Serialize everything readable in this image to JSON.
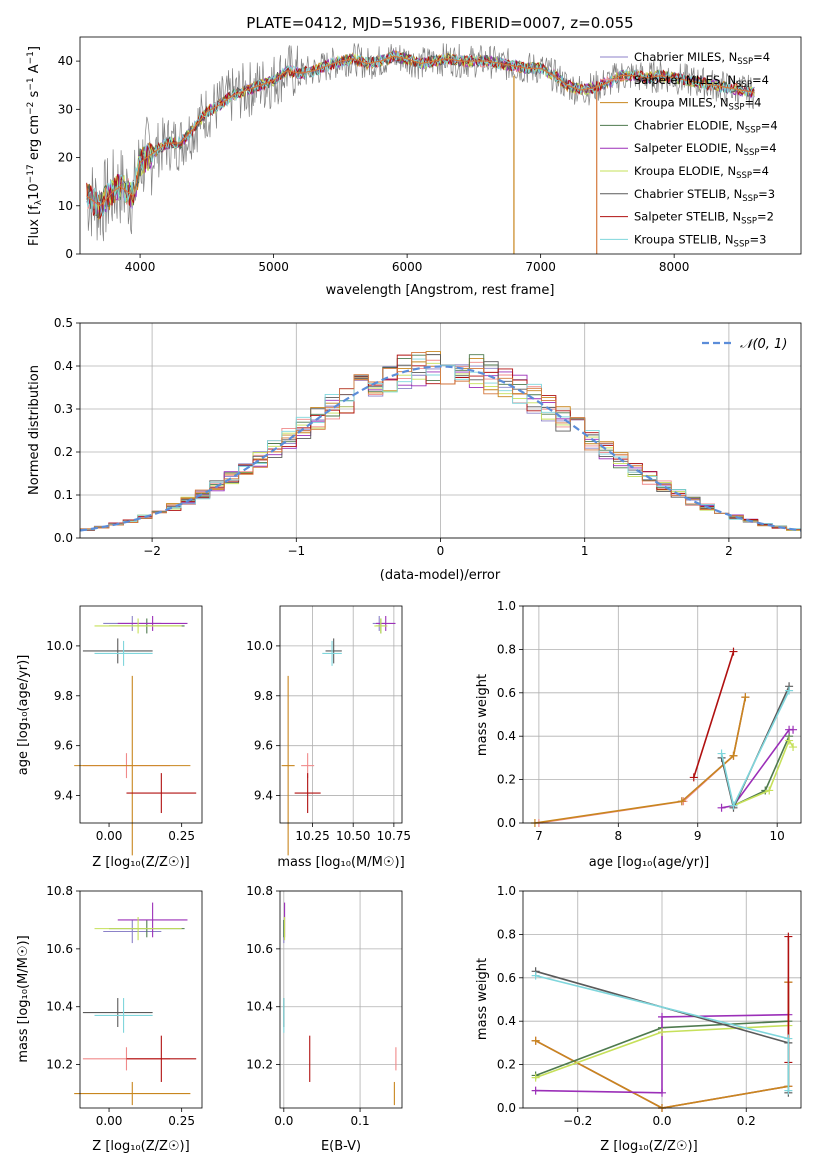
{
  "figure": {
    "title": "PLATE=0412, MJD=51936, FIBERID=0007, z=0.055"
  },
  "colors": {
    "Chabrier MILES": "#8c82c8",
    "Salpeter MILES": "#f08a8a",
    "Kroupa MILES": "#c8861e",
    "Chabrier ELODIE": "#4e7a4e",
    "Salpeter ELODIE": "#9b2fb8",
    "Kroupa ELODIE": "#c6e05a",
    "Chabrier STELIB": "#5a5a5a",
    "Salpeter STELIB": "#b01010",
    "Kroupa STELIB": "#7fd6dc",
    "combined": "#d4783c",
    "obs": "#808080",
    "normal": "#5b8dd9"
  },
  "chart_data": [
    {
      "id": "spectrum",
      "type": "line",
      "title": "PLATE=0412, MJD=51936, FIBERID=0007, z=0.055",
      "xlabel": "wavelength [Angstrom, rest frame]",
      "ylabel_parts": {
        "a": "Flux [f",
        "b": "λ",
        "c": "10",
        "d": "−17",
        "e": " erg cm",
        "f": "−2",
        "g": " s",
        "h": "−1",
        "i": " A",
        "j": "−1",
        "k": "]"
      },
      "xlim": [
        3550,
        8950
      ],
      "ylim": [
        0,
        45
      ],
      "xticks": [
        4000,
        5000,
        6000,
        7000,
        8000
      ],
      "yticks": [
        0,
        10,
        20,
        30,
        40
      ],
      "x": [
        3600,
        3650,
        3700,
        3750,
        3800,
        3850,
        3900,
        3950,
        4000,
        4100,
        4200,
        4300,
        4400,
        4500,
        4600,
        4700,
        4800,
        4900,
        5000,
        5100,
        5200,
        5300,
        5400,
        5500,
        5600,
        5700,
        5800,
        5900,
        6000,
        6100,
        6200,
        6300,
        6400,
        6500,
        6600,
        6700,
        6800,
        6900,
        7000,
        7100,
        7200,
        7300,
        7400,
        7500,
        7600,
        7700,
        7800,
        7900,
        8000,
        8100,
        8200,
        8300,
        8400,
        8500,
        8600
      ],
      "model": [
        12,
        11,
        10,
        11.5,
        13,
        14,
        13,
        12,
        19,
        21,
        23,
        23,
        26,
        29.5,
        31,
        33,
        34,
        35,
        36,
        38,
        37.5,
        38,
        39,
        40,
        40.5,
        39.5,
        40,
        41,
        40.5,
        39.5,
        40,
        40.5,
        40,
        40,
        40,
        39.5,
        39,
        38.5,
        38.5,
        37,
        35,
        34,
        34.5,
        35.5,
        37,
        37,
        36.5,
        37,
        36.5,
        36,
        35.5,
        35,
        34.5,
        34,
        33.5
      ],
      "legend": [
        {
          "base": "Chabrier MILES, N",
          "sub": "SSP",
          "tail": "=4"
        },
        {
          "base": "Salpeter MILES, N",
          "sub": "SSP",
          "tail": "=4"
        },
        {
          "base": "Kroupa MILES, N",
          "sub": "SSP",
          "tail": "=4"
        },
        {
          "base": "Chabrier ELODIE, N",
          "sub": "SSP",
          "tail": "=4"
        },
        {
          "base": "Salpeter ELODIE, N",
          "sub": "SSP",
          "tail": "=4"
        },
        {
          "base": "Kroupa ELODIE, N",
          "sub": "SSP",
          "tail": "=4"
        },
        {
          "base": "Chabrier STELIB, N",
          "sub": "SSP",
          "tail": "=3"
        },
        {
          "base": "Salpeter STELIB, N",
          "sub": "SSP",
          "tail": "=2"
        },
        {
          "base": "Kroupa STELIB, N",
          "sub": "SSP",
          "tail": "=3"
        }
      ],
      "legend_placement": "upper right"
    },
    {
      "id": "residuals",
      "type": "histogram",
      "xlabel": "(data-model)/error",
      "ylabel": "Normed distribution",
      "xlim": [
        -2.5,
        2.5
      ],
      "ylim": [
        0,
        0.5
      ],
      "xticks": [
        -2,
        -1,
        0,
        1,
        2
      ],
      "yticks": [
        0.0,
        0.1,
        0.2,
        0.3,
        0.4,
        0.5
      ],
      "grid": true,
      "bin_width": 0.1,
      "legend": {
        "label": "𝒩(0, 1)"
      },
      "legend_placement": "upper right"
    },
    {
      "id": "age-Z",
      "type": "scatter",
      "xlabel": "Z [log₁₀(Z/Z☉)]",
      "ylabel": "age  [log₁₀(age/yr)]",
      "xlim": [
        -0.1,
        0.32
      ],
      "ylim": [
        9.29,
        10.16
      ],
      "xticks": [
        0.0,
        0.25
      ],
      "yticks": [
        9.4,
        9.6,
        9.8,
        10.0
      ]
    },
    {
      "id": "age-mass",
      "type": "scatter",
      "xlabel": "mass [log₁₀(M/M☉)]",
      "ylabel": "",
      "xlim": [
        10.05,
        10.8
      ],
      "ylim": [
        9.29,
        10.16
      ],
      "xticks": [
        10.25,
        10.5,
        10.75
      ],
      "yticks": [
        9.4,
        9.6,
        9.8,
        10.0
      ]
    },
    {
      "id": "weight-age",
      "type": "line",
      "xlabel": "age  [log₁₀(age/yr)]",
      "ylabel": "mass weight",
      "xlim": [
        6.8,
        10.3
      ],
      "ylim": [
        0,
        1
      ],
      "xticks": [
        7,
        8,
        9,
        10
      ],
      "yticks": [
        0.0,
        0.2,
        0.4,
        0.6,
        0.8,
        1.0
      ],
      "grid": true
    },
    {
      "id": "mass-Z",
      "type": "scatter",
      "xlabel": "Z [log₁₀(Z/Z☉)]",
      "ylabel": "mass [log₁₀(M/M☉)]",
      "xlim": [
        -0.1,
        0.32
      ],
      "ylim": [
        10.05,
        10.8
      ],
      "xticks": [
        0.0,
        0.25
      ],
      "yticks": [
        10.2,
        10.4,
        10.6,
        10.8
      ]
    },
    {
      "id": "mass-EBV",
      "type": "scatter",
      "xlabel": "E(B-V)",
      "ylabel": "",
      "xlim": [
        -0.005,
        0.155
      ],
      "ylim": [
        10.05,
        10.8
      ],
      "xticks": [
        0.0,
        0.1
      ],
      "yticks": [
        10.2,
        10.4,
        10.6,
        10.8
      ],
      "grid": true
    },
    {
      "id": "weight-Z",
      "type": "line",
      "xlabel": "Z [log₁₀(Z/Z☉)]",
      "ylabel": "mass weight",
      "xlim": [
        -0.33,
        0.33
      ],
      "ylim": [
        0,
        1
      ],
      "xticks": [
        -0.2,
        0.0,
        0.2
      ],
      "yticks": [
        0.0,
        0.2,
        0.4,
        0.6,
        0.8,
        1.0
      ],
      "grid": true
    }
  ],
  "models": [
    {
      "key": "Chabrier MILES",
      "Z": 0.08,
      "Zerr": 0.1,
      "age": 10.09,
      "ageErr": 0.03,
      "mass": 10.66,
      "massErr": 0.04,
      "ebv": 0.0,
      "wa": [
        [
          8.8,
          0.1
        ],
        [
          9.45,
          0.31
        ],
        [
          9.6,
          0.58
        ]
      ],
      "wz": [
        [
          -0.3,
          0.31
        ],
        [
          0.0,
          0.0
        ],
        [
          0.3,
          0.1
        ],
        [
          0.3,
          0.58
        ]
      ]
    },
    {
      "key": "Salpeter MILES",
      "Z": 0.06,
      "Zerr": 0.15,
      "age": 9.52,
      "ageErr": 0.05,
      "mass": 10.22,
      "massErr": 0.04,
      "ebv": 0.147,
      "wa": [
        [
          7.0,
          0.0
        ],
        [
          8.82,
          0.1
        ],
        [
          9.45,
          0.31
        ],
        [
          9.6,
          0.58
        ]
      ],
      "wz": [
        [
          -0.3,
          0.31
        ],
        [
          0.0,
          0.0
        ],
        [
          0.3,
          0.1
        ],
        [
          0.3,
          0.58
        ]
      ]
    },
    {
      "key": "Kroupa MILES",
      "Z": 0.08,
      "Zerr": 0.2,
      "age": 9.52,
      "ageErr": 0.36,
      "mass": 10.1,
      "massErr": 0.04,
      "ebv": 0.145,
      "wa": [
        [
          6.95,
          0.0
        ],
        [
          8.8,
          0.1
        ],
        [
          9.45,
          0.31
        ],
        [
          9.6,
          0.58
        ]
      ],
      "wz": [
        [
          -0.3,
          0.31
        ],
        [
          0.0,
          0.0
        ],
        [
          0.3,
          0.1
        ],
        [
          0.3,
          0.58
        ]
      ]
    },
    {
      "key": "Chabrier ELODIE",
      "Z": 0.13,
      "Zerr": 0.13,
      "age": 10.08,
      "ageErr": 0.03,
      "mass": 10.67,
      "massErr": 0.03,
      "ebv": 0.0,
      "wa": [
        [
          9.45,
          0.08
        ],
        [
          9.85,
          0.15
        ],
        [
          10.15,
          0.4
        ]
      ],
      "wz": [
        [
          -0.3,
          0.15
        ],
        [
          0.0,
          0.37
        ],
        [
          0.3,
          0.4
        ]
      ]
    },
    {
      "key": "Salpeter ELODIE",
      "Z": 0.15,
      "Zerr": 0.12,
      "age": 10.09,
      "ageErr": 0.03,
      "mass": 10.7,
      "massErr": 0.06,
      "ebv": 0.001,
      "wa": [
        [
          9.3,
          0.07
        ],
        [
          9.45,
          0.08
        ],
        [
          10.15,
          0.43
        ],
        [
          10.2,
          0.43
        ]
      ],
      "wz": [
        [
          -0.3,
          0.08
        ],
        [
          0.0,
          0.07
        ],
        [
          0.0,
          0.42
        ],
        [
          0.3,
          0.43
        ]
      ]
    },
    {
      "key": "Kroupa ELODIE",
      "Z": 0.1,
      "Zerr": 0.15,
      "age": 10.08,
      "ageErr": 0.03,
      "mass": 10.67,
      "massErr": 0.04,
      "ebv": 0.001,
      "wa": [
        [
          9.45,
          0.08
        ],
        [
          9.9,
          0.15
        ],
        [
          10.15,
          0.38
        ],
        [
          10.2,
          0.35
        ]
      ],
      "wz": [
        [
          -0.3,
          0.14
        ],
        [
          0.0,
          0.35
        ],
        [
          0.3,
          0.38
        ]
      ]
    },
    {
      "key": "Chabrier STELIB",
      "Z": 0.03,
      "Zerr": 0.12,
      "age": 9.98,
      "ageErr": 0.05,
      "mass": 10.38,
      "massErr": 0.05,
      "ebv": 0.0,
      "wa": [
        [
          9.3,
          0.3
        ],
        [
          9.45,
          0.07
        ],
        [
          10.15,
          0.63
        ]
      ],
      "wz": [
        [
          -0.3,
          0.63
        ],
        [
          0.3,
          0.3
        ],
        [
          0.3,
          0.07
        ]
      ]
    },
    {
      "key": "Salpeter STELIB",
      "Z": 0.18,
      "Zerr": 0.12,
      "age": 9.41,
      "ageErr": 0.08,
      "mass": 10.22,
      "massErr": 0.08,
      "ebv": 0.034,
      "wa": [
        [
          8.95,
          0.21
        ],
        [
          9.45,
          0.79
        ]
      ],
      "wz": [
        [
          0.3,
          0.21
        ],
        [
          0.3,
          0.79
        ]
      ]
    },
    {
      "key": "Kroupa STELIB",
      "Z": 0.05,
      "Zerr": 0.1,
      "age": 9.97,
      "ageErr": 0.05,
      "mass": 10.37,
      "massErr": 0.06,
      "ebv": 0.0,
      "wa": [
        [
          9.3,
          0.32
        ],
        [
          9.45,
          0.08
        ],
        [
          10.15,
          0.61
        ]
      ],
      "wz": [
        [
          -0.3,
          0.61
        ],
        [
          0.3,
          0.32
        ],
        [
          0.3,
          0.08
        ]
      ]
    }
  ]
}
